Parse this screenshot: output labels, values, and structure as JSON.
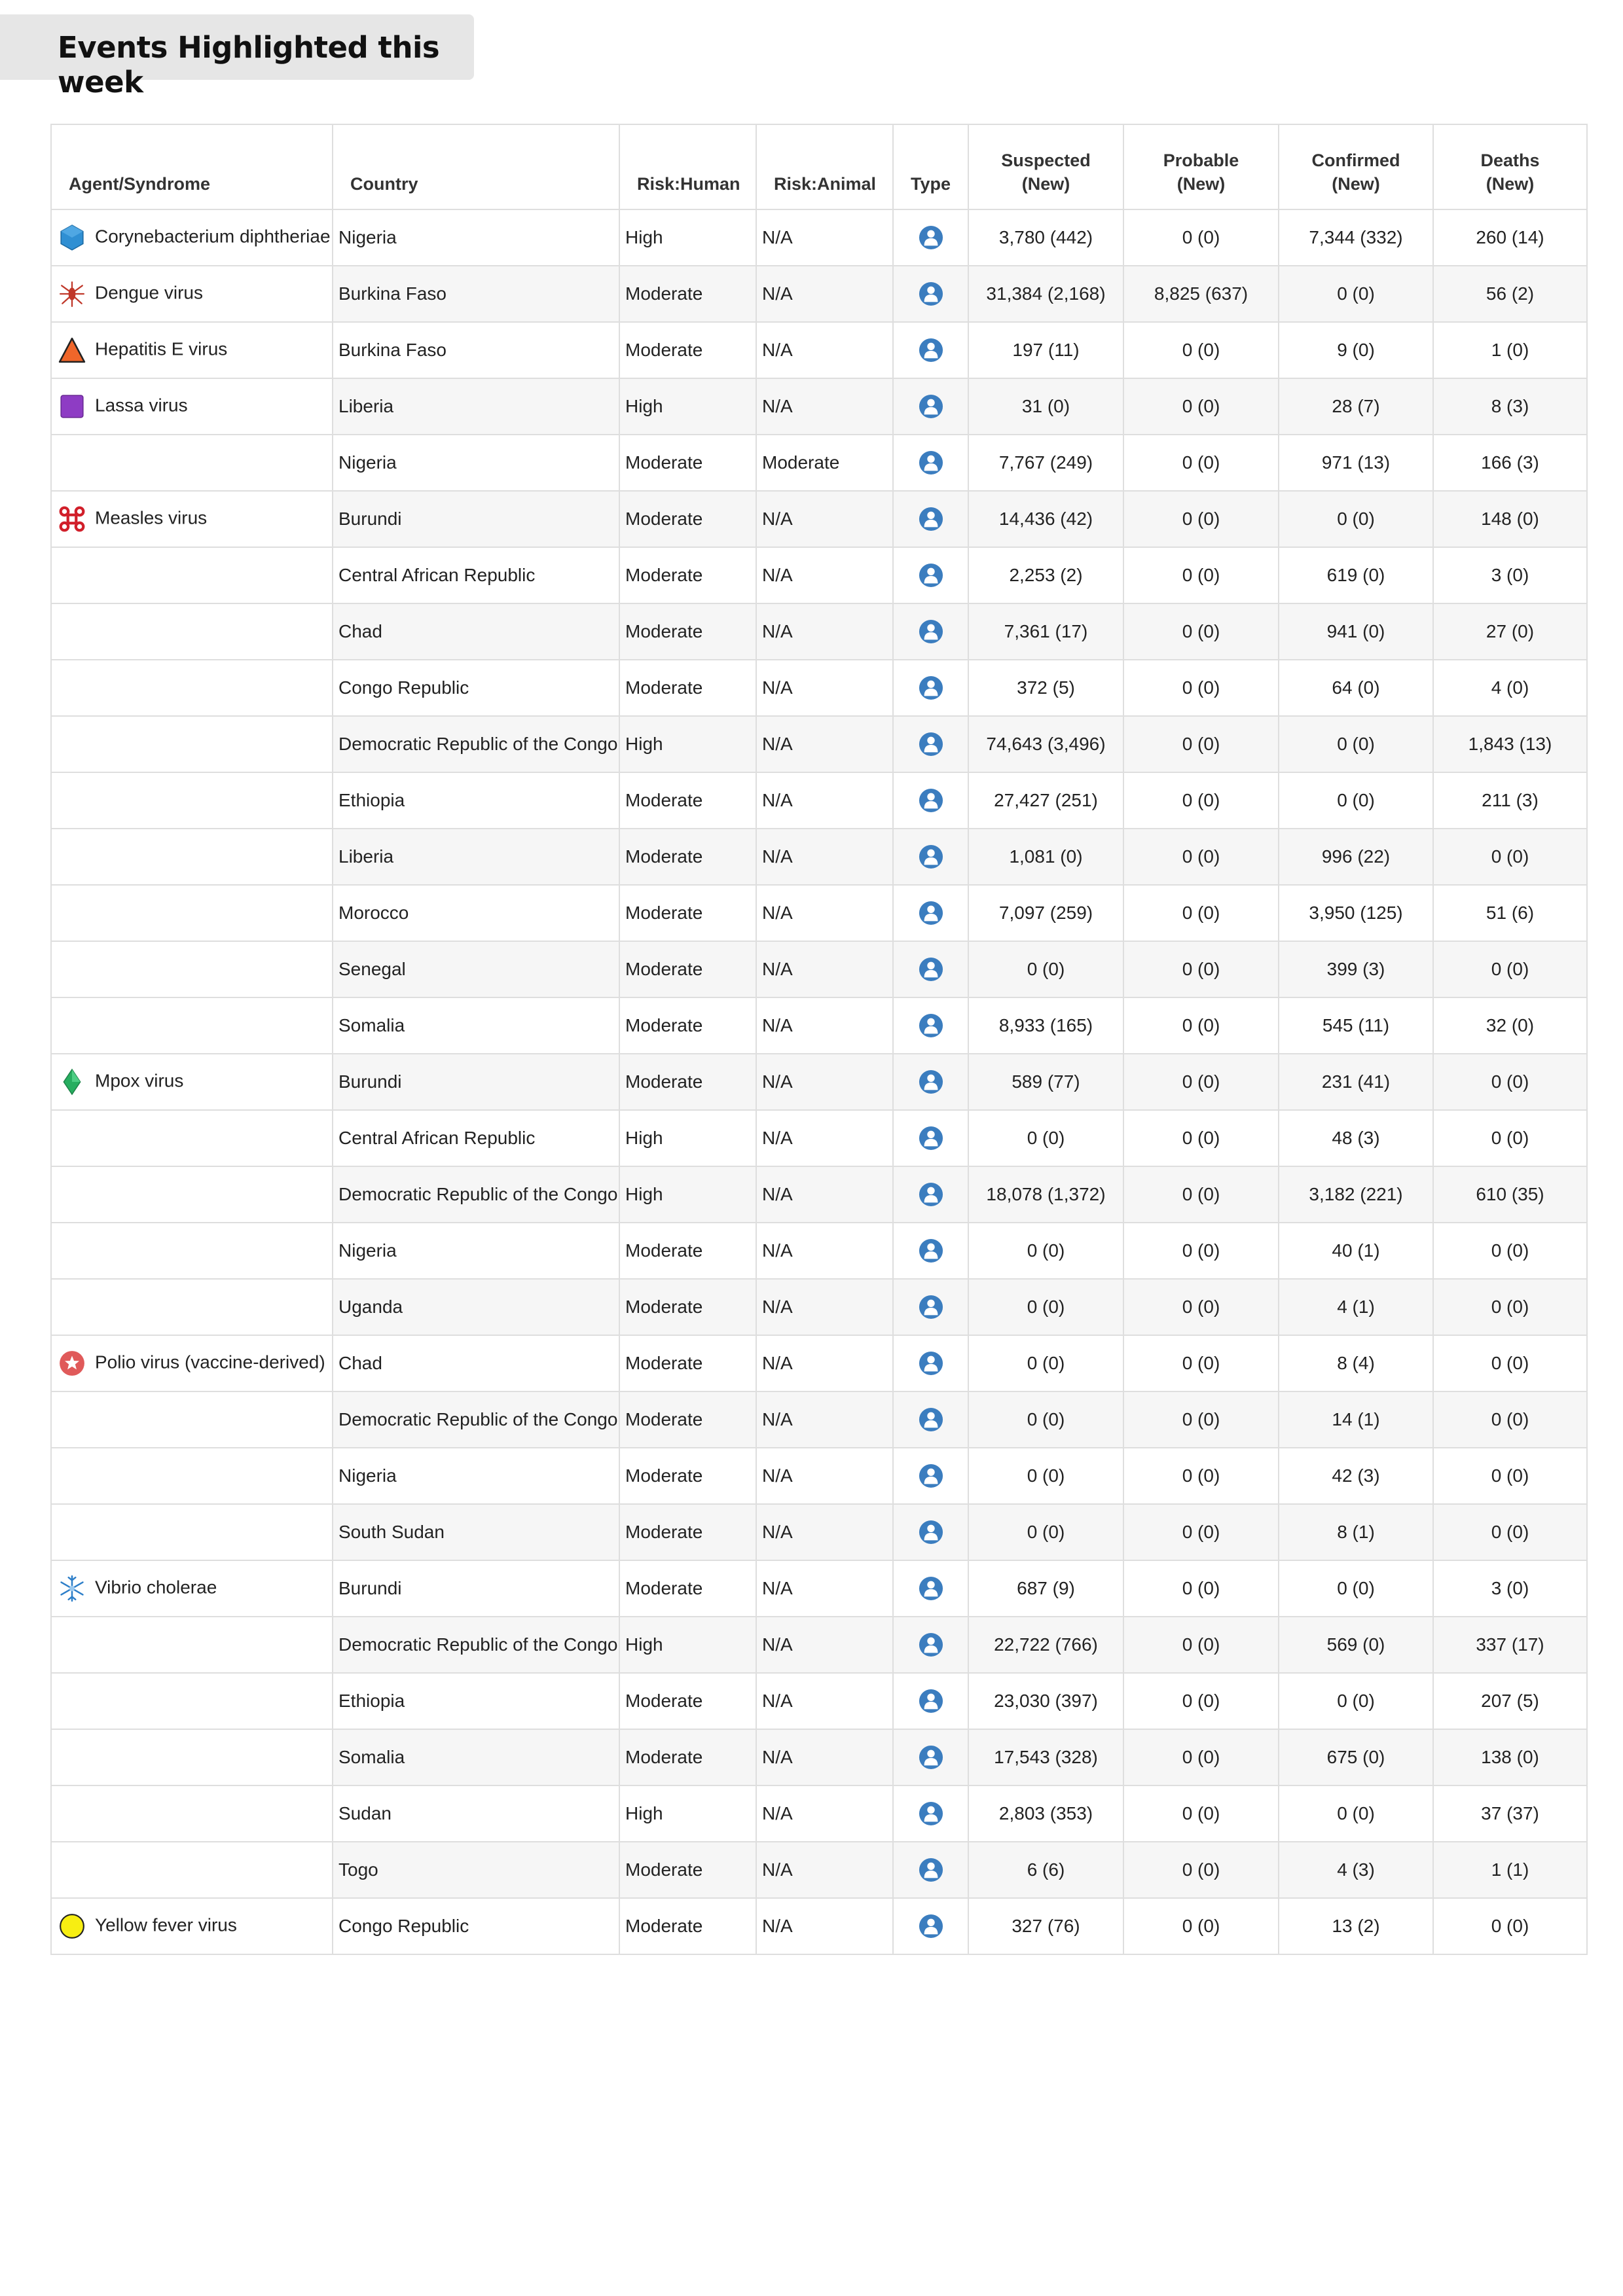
{
  "title": "Events Highlighted this week",
  "headers": {
    "agent": "Agent/Syndrome",
    "country": "Country",
    "risk_human": "Risk:Human",
    "risk_animal": "Risk:Animal",
    "type": "Type",
    "suspected": [
      "Suspected",
      "(New)"
    ],
    "probable": [
      "Probable",
      "(New)"
    ],
    "confirmed": [
      "Confirmed",
      "(New)"
    ],
    "deaths": [
      "Deaths",
      "(New)"
    ]
  },
  "rows": [
    {
      "agent": "Corynebacterium diphtheriae",
      "icon": "hexagon-icon",
      "country": "Nigeria",
      "risk_human": "High",
      "risk_animal": "N/A",
      "type": "human-icon",
      "suspected": "3,780 (442)",
      "probable": "0 (0)",
      "confirmed": "7,344 (332)",
      "deaths": "260 (14)"
    },
    {
      "agent": "Dengue virus",
      "icon": "mosquito-icon",
      "country": "Burkina Faso",
      "risk_human": "Moderate",
      "risk_animal": "N/A",
      "type": "human-icon",
      "suspected": "31,384 (2,168)",
      "probable": "8,825 (637)",
      "confirmed": "0 (0)",
      "deaths": "56 (2)"
    },
    {
      "agent": "Hepatitis E virus",
      "icon": "triangle-icon",
      "country": "Burkina Faso",
      "risk_human": "Moderate",
      "risk_animal": "N/A",
      "type": "human-icon",
      "suspected": "197 (11)",
      "probable": "0 (0)",
      "confirmed": "9 (0)",
      "deaths": "1 (0)"
    },
    {
      "agent": "Lassa virus",
      "icon": "square-icon",
      "country": "Liberia",
      "risk_human": "High",
      "risk_animal": "N/A",
      "type": "human-icon",
      "suspected": "31 (0)",
      "probable": "0 (0)",
      "confirmed": "28 (7)",
      "deaths": "8 (3)"
    },
    {
      "agent": "",
      "icon": "",
      "country": "Nigeria",
      "risk_human": "Moderate",
      "risk_animal": "Moderate",
      "type": "human-icon",
      "suspected": "7,767 (249)",
      "probable": "0 (0)",
      "confirmed": "971 (13)",
      "deaths": "166 (3)"
    },
    {
      "agent": "Measles virus",
      "icon": "command-icon",
      "country": "Burundi",
      "risk_human": "Moderate",
      "risk_animal": "N/A",
      "type": "human-icon",
      "suspected": "14,436 (42)",
      "probable": "0 (0)",
      "confirmed": "0 (0)",
      "deaths": "148 (0)"
    },
    {
      "agent": "",
      "icon": "",
      "country": "Central African Republic",
      "risk_human": "Moderate",
      "risk_animal": "N/A",
      "type": "human-icon",
      "suspected": "2,253 (2)",
      "probable": "0 (0)",
      "confirmed": "619 (0)",
      "deaths": "3 (0)"
    },
    {
      "agent": "",
      "icon": "",
      "country": "Chad",
      "risk_human": "Moderate",
      "risk_animal": "N/A",
      "type": "human-icon",
      "suspected": "7,361 (17)",
      "probable": "0 (0)",
      "confirmed": "941 (0)",
      "deaths": "27 (0)"
    },
    {
      "agent": "",
      "icon": "",
      "country": "Congo Republic",
      "risk_human": "Moderate",
      "risk_animal": "N/A",
      "type": "human-icon",
      "suspected": "372 (5)",
      "probable": "0 (0)",
      "confirmed": "64 (0)",
      "deaths": "4 (0)"
    },
    {
      "agent": "",
      "icon": "",
      "country": "Democratic Republic of the Congo",
      "risk_human": "High",
      "risk_animal": "N/A",
      "type": "human-icon",
      "suspected": "74,643 (3,496)",
      "probable": "0 (0)",
      "confirmed": "0 (0)",
      "deaths": "1,843 (13)"
    },
    {
      "agent": "",
      "icon": "",
      "country": "Ethiopia",
      "risk_human": "Moderate",
      "risk_animal": "N/A",
      "type": "human-icon",
      "suspected": "27,427 (251)",
      "probable": "0 (0)",
      "confirmed": "0 (0)",
      "deaths": "211 (3)"
    },
    {
      "agent": "",
      "icon": "",
      "country": "Liberia",
      "risk_human": "Moderate",
      "risk_animal": "N/A",
      "type": "human-icon",
      "suspected": "1,081 (0)",
      "probable": "0 (0)",
      "confirmed": "996 (22)",
      "deaths": "0 (0)"
    },
    {
      "agent": "",
      "icon": "",
      "country": "Morocco",
      "risk_human": "Moderate",
      "risk_animal": "N/A",
      "type": "human-icon",
      "suspected": "7,097 (259)",
      "probable": "0 (0)",
      "confirmed": "3,950 (125)",
      "deaths": "51 (6)"
    },
    {
      "agent": "",
      "icon": "",
      "country": "Senegal",
      "risk_human": "Moderate",
      "risk_animal": "N/A",
      "type": "human-icon",
      "suspected": "0 (0)",
      "probable": "0 (0)",
      "confirmed": "399 (3)",
      "deaths": "0 (0)"
    },
    {
      "agent": "",
      "icon": "",
      "country": "Somalia",
      "risk_human": "Moderate",
      "risk_animal": "N/A",
      "type": "human-icon",
      "suspected": "8,933 (165)",
      "probable": "0 (0)",
      "confirmed": "545 (11)",
      "deaths": "32 (0)"
    },
    {
      "agent": "Mpox virus",
      "icon": "diamond-icon",
      "country": "Burundi",
      "risk_human": "Moderate",
      "risk_animal": "N/A",
      "type": "human-icon",
      "suspected": "589 (77)",
      "probable": "0 (0)",
      "confirmed": "231 (41)",
      "deaths": "0 (0)"
    },
    {
      "agent": "",
      "icon": "",
      "country": "Central African Republic",
      "risk_human": "High",
      "risk_animal": "N/A",
      "type": "human-icon",
      "suspected": "0 (0)",
      "probable": "0 (0)",
      "confirmed": "48 (3)",
      "deaths": "0 (0)"
    },
    {
      "agent": "",
      "icon": "",
      "country": "Democratic Republic of the Congo",
      "risk_human": "High",
      "risk_animal": "N/A",
      "type": "human-icon",
      "suspected": "18,078 (1,372)",
      "probable": "0 (0)",
      "confirmed": "3,182 (221)",
      "deaths": "610 (35)"
    },
    {
      "agent": "",
      "icon": "",
      "country": "Nigeria",
      "risk_human": "Moderate",
      "risk_animal": "N/A",
      "type": "human-icon",
      "suspected": "0 (0)",
      "probable": "0 (0)",
      "confirmed": "40 (1)",
      "deaths": "0 (0)"
    },
    {
      "agent": "",
      "icon": "",
      "country": "Uganda",
      "risk_human": "Moderate",
      "risk_animal": "N/A",
      "type": "human-icon",
      "suspected": "0 (0)",
      "probable": "0 (0)",
      "confirmed": "4 (1)",
      "deaths": "0 (0)"
    },
    {
      "agent": "Polio virus (vaccine-derived)",
      "icon": "star-circle-icon",
      "country": "Chad",
      "risk_human": "Moderate",
      "risk_animal": "N/A",
      "type": "human-icon",
      "suspected": "0 (0)",
      "probable": "0 (0)",
      "confirmed": "8 (4)",
      "deaths": "0 (0)"
    },
    {
      "agent": "",
      "icon": "",
      "country": "Democratic Republic of the Congo",
      "risk_human": "Moderate",
      "risk_animal": "N/A",
      "type": "human-icon",
      "suspected": "0 (0)",
      "probable": "0 (0)",
      "confirmed": "14 (1)",
      "deaths": "0 (0)"
    },
    {
      "agent": "",
      "icon": "",
      "country": "Nigeria",
      "risk_human": "Moderate",
      "risk_animal": "N/A",
      "type": "human-icon",
      "suspected": "0 (0)",
      "probable": "0 (0)",
      "confirmed": "42 (3)",
      "deaths": "0 (0)"
    },
    {
      "agent": "",
      "icon": "",
      "country": "South Sudan",
      "risk_human": "Moderate",
      "risk_animal": "N/A",
      "type": "human-icon",
      "suspected": "0 (0)",
      "probable": "0 (0)",
      "confirmed": "8 (1)",
      "deaths": "0 (0)"
    },
    {
      "agent": "Vibrio cholerae",
      "icon": "snowflake-icon",
      "country": "Burundi",
      "risk_human": "Moderate",
      "risk_animal": "N/A",
      "type": "human-icon",
      "suspected": "687 (9)",
      "probable": "0 (0)",
      "confirmed": "0 (0)",
      "deaths": "3 (0)"
    },
    {
      "agent": "",
      "icon": "",
      "country": "Democratic Republic of the Congo",
      "risk_human": "High",
      "risk_animal": "N/A",
      "type": "human-icon",
      "suspected": "22,722 (766)",
      "probable": "0 (0)",
      "confirmed": "569 (0)",
      "deaths": "337 (17)"
    },
    {
      "agent": "",
      "icon": "",
      "country": "Ethiopia",
      "risk_human": "Moderate",
      "risk_animal": "N/A",
      "type": "human-icon",
      "suspected": "23,030 (397)",
      "probable": "0 (0)",
      "confirmed": "0 (0)",
      "deaths": "207 (5)"
    },
    {
      "agent": "",
      "icon": "",
      "country": "Somalia",
      "risk_human": "Moderate",
      "risk_animal": "N/A",
      "type": "human-icon",
      "suspected": "17,543 (328)",
      "probable": "0 (0)",
      "confirmed": "675 (0)",
      "deaths": "138 (0)"
    },
    {
      "agent": "",
      "icon": "",
      "country": "Sudan",
      "risk_human": "High",
      "risk_animal": "N/A",
      "type": "human-icon",
      "suspected": "2,803 (353)",
      "probable": "0 (0)",
      "confirmed": "0 (0)",
      "deaths": "37 (37)"
    },
    {
      "agent": "",
      "icon": "",
      "country": "Togo",
      "risk_human": "Moderate",
      "risk_animal": "N/A",
      "type": "human-icon",
      "suspected": "6 (6)",
      "probable": "0 (0)",
      "confirmed": "4 (3)",
      "deaths": "1 (1)"
    },
    {
      "agent": "Yellow fever virus",
      "icon": "yellow-circle-icon",
      "country": "Congo Republic",
      "risk_human": "Moderate",
      "risk_animal": "N/A",
      "type": "human-icon",
      "suspected": "327 (76)",
      "probable": "0 (0)",
      "confirmed": "13 (2)",
      "deaths": "0 (0)"
    }
  ]
}
